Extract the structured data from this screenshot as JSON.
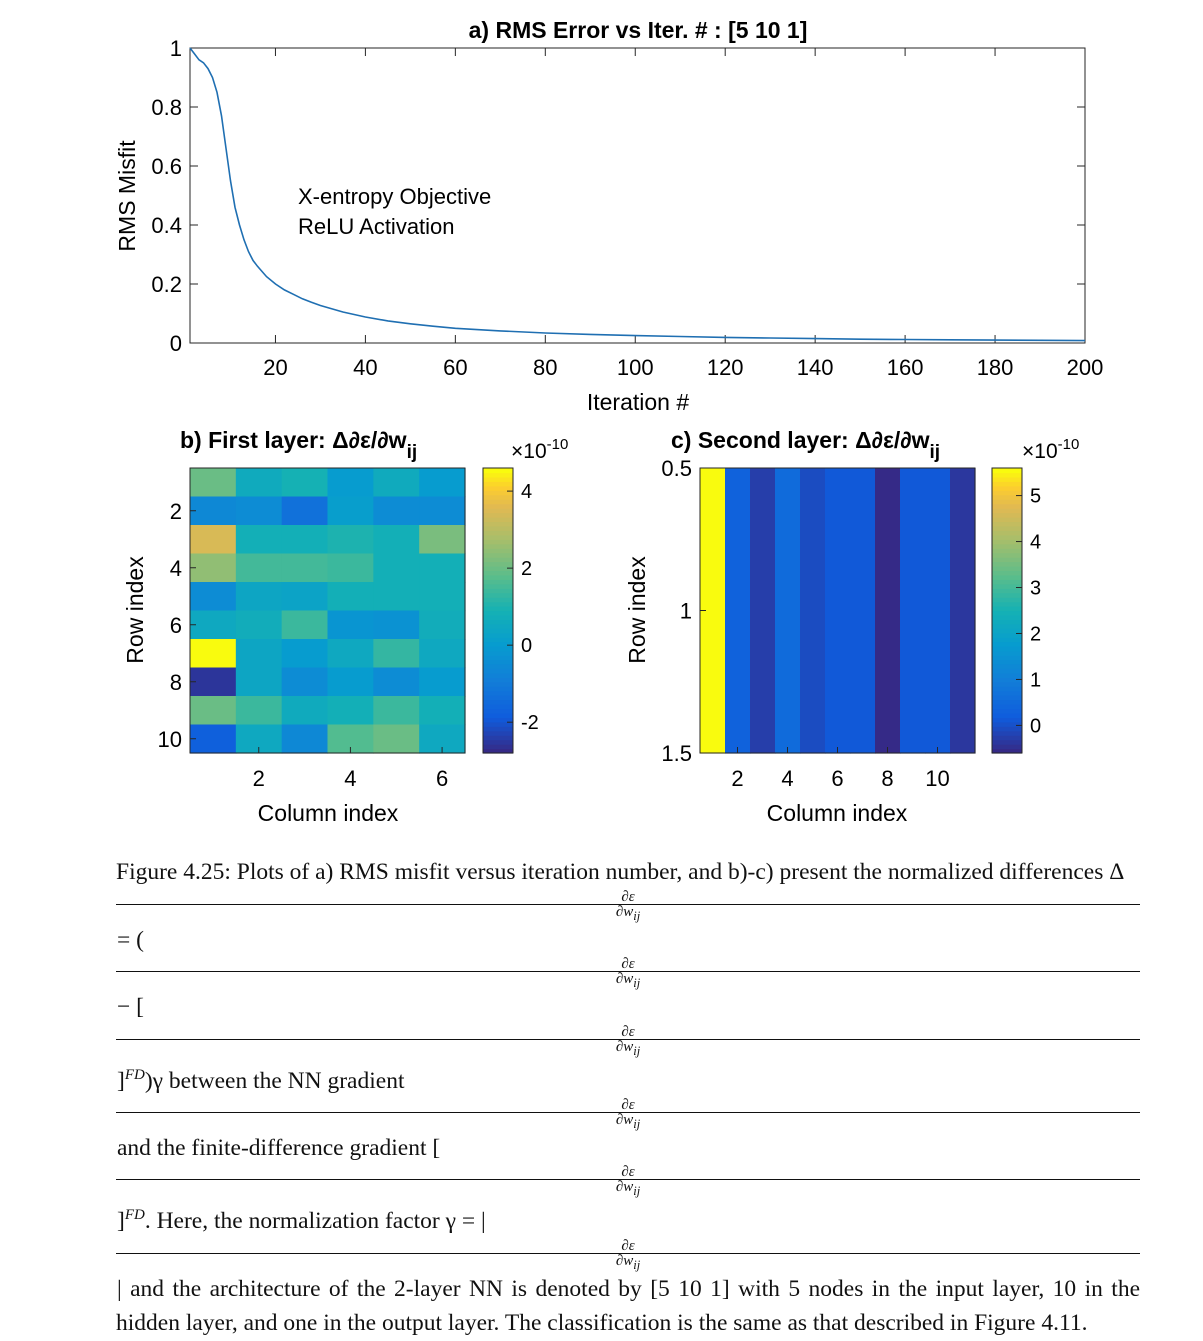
{
  "chart_data": [
    {
      "type": "line",
      "title": "a) RMS Error vs Iter. # : [5  10   1]",
      "xlabel": "Iteration #",
      "ylabel": "RMS Misfit",
      "xlim": [
        1,
        200
      ],
      "ylim": [
        0,
        1
      ],
      "xticks": [
        "20",
        "40",
        "60",
        "80",
        "100",
        "120",
        "140",
        "160",
        "180",
        "200"
      ],
      "yticks": [
        "0",
        "0.2",
        "0.4",
        "0.6",
        "0.8",
        "1"
      ],
      "annotations": [
        "X-entropy Objective",
        "ReLU Activation"
      ],
      "color": "#1f6fb2",
      "x": [
        1,
        2,
        3,
        4,
        5,
        6,
        7,
        8,
        9,
        10,
        11,
        12,
        13,
        14,
        15,
        16,
        18,
        20,
        22,
        24,
        26,
        28,
        30,
        35,
        40,
        45,
        50,
        55,
        60,
        70,
        80,
        90,
        100,
        110,
        120,
        130,
        140,
        150,
        160,
        170,
        180,
        190,
        200
      ],
      "y": [
        1.0,
        0.98,
        0.96,
        0.95,
        0.93,
        0.9,
        0.85,
        0.77,
        0.66,
        0.55,
        0.46,
        0.4,
        0.35,
        0.31,
        0.28,
        0.26,
        0.225,
        0.2,
        0.18,
        0.165,
        0.15,
        0.138,
        0.127,
        0.105,
        0.088,
        0.075,
        0.065,
        0.057,
        0.05,
        0.041,
        0.034,
        0.029,
        0.025,
        0.022,
        0.019,
        0.017,
        0.015,
        0.013,
        0.012,
        0.011,
        0.01,
        0.009,
        0.008
      ]
    },
    {
      "type": "heatmap",
      "title": "b) First layer: Δ∂ε/∂w",
      "title_sub": "ij",
      "xlabel": "Column index",
      "ylabel": "Row index",
      "xticks": [
        "2",
        "4",
        "6"
      ],
      "yticks": [
        "2",
        "4",
        "6",
        "8",
        "10"
      ],
      "colorbar_label": "×10",
      "colorbar_exp": "-10",
      "colorbar_ticks": [
        "-2",
        "0",
        "2",
        "4"
      ],
      "clim": [
        -2.8,
        4.6
      ],
      "values": [
        [
          2.0,
          0.6,
          0.9,
          0.0,
          0.6,
          0.0
        ],
        [
          -0.6,
          -0.5,
          -1.3,
          0.1,
          -0.5,
          -0.5
        ],
        [
          3.5,
          0.8,
          0.8,
          1.0,
          0.8,
          2.2
        ],
        [
          2.5,
          1.5,
          1.5,
          1.4,
          0.8,
          0.8
        ],
        [
          -0.5,
          0.4,
          0.3,
          0.8,
          0.8,
          0.8
        ],
        [
          0.5,
          0.7,
          1.4,
          -0.2,
          -0.3,
          0.7
        ],
        [
          4.6,
          0.4,
          0.0,
          0.5,
          1.3,
          0.5
        ],
        [
          -2.6,
          0.4,
          -0.5,
          0.0,
          -0.5,
          0.0
        ],
        [
          2.0,
          1.4,
          0.6,
          0.8,
          1.4,
          0.8
        ],
        [
          -1.8,
          0.5,
          -0.6,
          1.7,
          2.0,
          0.5
        ]
      ]
    },
    {
      "type": "heatmap",
      "title": "c) Second layer: Δ∂ε/∂w",
      "title_sub": "ij",
      "xlabel": "Column index",
      "ylabel": "Row index",
      "xticks": [
        "2",
        "4",
        "6",
        "8",
        "10"
      ],
      "yticks": [
        "0.5",
        "1",
        "1.5"
      ],
      "colorbar_label": "×10",
      "colorbar_exp": "-10",
      "colorbar_ticks": [
        "0",
        "1",
        "2",
        "3",
        "4",
        "5"
      ],
      "clim": [
        -0.6,
        5.6
      ],
      "values": [
        [
          5.6,
          0.3,
          -0.3,
          0.5,
          -0.1,
          0.1,
          0.1,
          -0.6,
          0.1,
          0.1,
          -0.4
        ]
      ]
    }
  ],
  "caption": {
    "p1": "Figure 4.25: Plots of a) RMS misfit versus iteration number, and b)-c) present the normalized differences Δ",
    "f_num": "∂ε",
    "f_den": "∂w",
    "f_den_sub": "ij",
    "p2": " = (",
    "p3": " − [",
    "p4": "]",
    "sup_fd": "FD",
    "p5": ")γ between the NN gradient ",
    "p6": " and the finite-difference gradient [",
    "p7": ". Here, the normalization factor γ = |",
    "p8": "| and the architecture of the 2-layer NN is denoted by [5 10 1] with 5 nodes in the input layer, 10 in the hidden layer, and one in the output layer. The classification is the same as that described in Figure 4.11."
  }
}
